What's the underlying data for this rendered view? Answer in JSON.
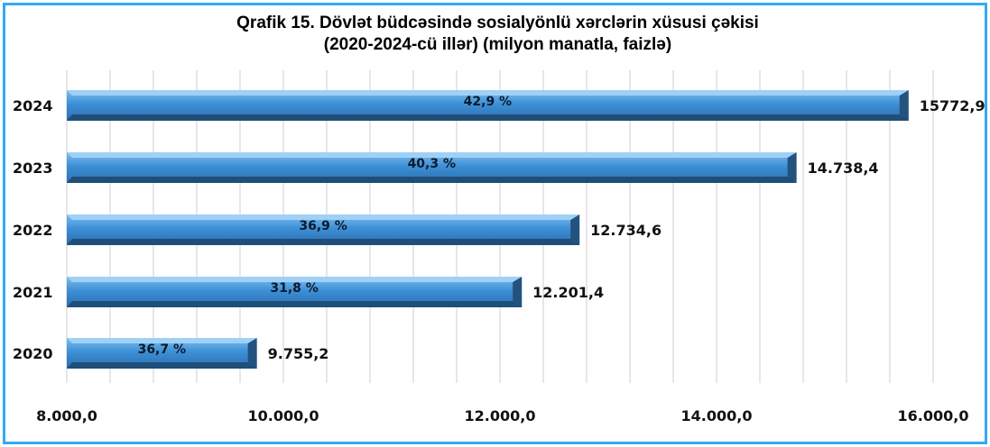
{
  "chart_data": {
    "type": "bar",
    "orientation": "horizontal",
    "title": "Qrafik 15. Dövlət büdcəsində sosialyönlü xərclərin xüsusi çəkisi",
    "subtitle": "(2020-2024-cü illər) (milyon manatla, faizlə)",
    "categories": [
      "2024",
      "2023",
      "2022",
      "2021",
      "2020"
    ],
    "values": [
      15772.9,
      14738.4,
      12734.6,
      12201.4,
      9755.2
    ],
    "value_labels": [
      "15772,9",
      "14.738,4",
      "12.734,6",
      "12.201,4",
      "9.755,2"
    ],
    "share_labels": [
      "42,9 %",
      "40,3 %",
      "36,9 %",
      "31,8 %",
      "36,7 %"
    ],
    "xlim": [
      8000,
      16000
    ],
    "x_ticks": [
      8000,
      10000,
      12000,
      14000,
      16000
    ],
    "x_tick_labels": [
      "8.000,0",
      "10.000,0",
      "12.000,0",
      "14.000,0",
      "16.000,0"
    ],
    "grid": "vertical",
    "colors": {
      "bar": "#3d8fd6",
      "bar_dark": "#1f4e79",
      "grid": "#cfcfcf",
      "border": "#33aaf2"
    }
  }
}
